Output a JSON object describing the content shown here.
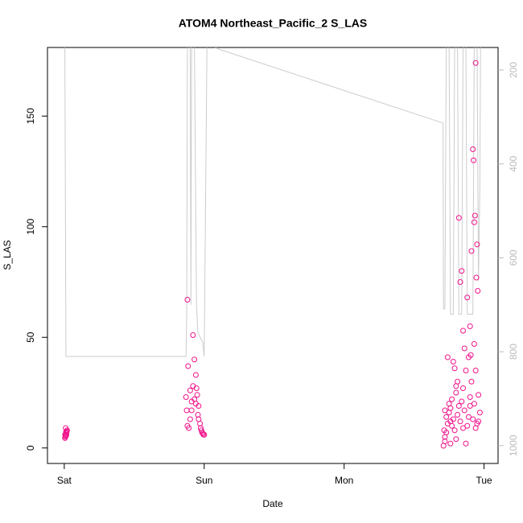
{
  "chart_data": {
    "type": "scatter",
    "title": "ATOM4 Northeast_Pacific_2 S_LAS",
    "x_label": "Date",
    "y_label": "S_LAS",
    "xlim": [
      -0.12,
      3.1
    ],
    "xticks": [
      {
        "value": 0,
        "label": "Sat"
      },
      {
        "value": 1,
        "label": "Sun"
      },
      {
        "value": 2,
        "label": "Mon"
      },
      {
        "value": 3,
        "label": "Tue"
      }
    ],
    "ylim": [
      -7,
      181
    ],
    "yticks": [
      0,
      50,
      100,
      150
    ],
    "y2lim": [
      1038,
      152
    ],
    "y2ticks": [
      200,
      400,
      600,
      800,
      1000
    ],
    "y2_color": "#bbbbbb",
    "grid": false,
    "series": [
      {
        "kind": "points",
        "color": "#f0148c",
        "x": [
          0.005,
          0.008,
          0.01,
          0.012,
          0.014,
          0.016,
          0.018,
          0.02,
          0.01,
          0.006,
          0.015,
          0.012,
          0.88,
          0.885,
          0.87,
          0.875,
          0.89,
          0.9,
          0.91,
          0.92,
          0.93,
          0.94,
          0.945,
          0.95,
          0.96,
          0.955,
          0.97,
          0.975,
          0.98,
          0.985,
          0.99,
          1.0,
          0.995,
          0.9,
          0.92,
          0.93,
          0.94,
          0.88,
          0.91,
          0.96,
          2.71,
          2.72,
          2.715,
          2.73,
          2.72,
          2.74,
          2.75,
          2.76,
          2.77,
          2.78,
          2.79,
          2.8,
          2.81,
          2.82,
          2.83,
          2.84,
          2.85,
          2.86,
          2.87,
          2.88,
          2.89,
          2.9,
          2.905,
          2.91,
          2.92,
          2.925,
          2.93,
          2.935,
          2.94,
          2.95,
          2.945,
          2.955,
          2.96,
          2.97,
          2.73,
          2.74,
          2.75,
          2.76,
          2.77,
          2.78,
          2.79,
          2.8,
          2.81,
          2.82,
          2.83,
          2.84,
          2.85,
          2.86,
          2.87,
          2.88,
          2.89,
          2.9,
          2.91,
          2.92,
          2.93,
          2.94,
          2.95,
          2.96,
          2.72,
          2.76,
          2.8,
          2.85,
          2.9,
          2.93,
          2.94
        ],
        "values": [
          4.5,
          5,
          5.5,
          6,
          6.5,
          7,
          7.5,
          8,
          9,
          6,
          5.8,
          7.2,
          67,
          37,
          23,
          17,
          9,
          13,
          21,
          51,
          40,
          33,
          27,
          24,
          19,
          15,
          11,
          9,
          8,
          7,
          6.5,
          6,
          6,
          26,
          28,
          22,
          20,
          10,
          17,
          13,
          1,
          3,
          8,
          14,
          17,
          41,
          20,
          12,
          10,
          39,
          36,
          25,
          30,
          104,
          75,
          80,
          53,
          45,
          35,
          68,
          41,
          55,
          42,
          89,
          135,
          130,
          102,
          105,
          174,
          92,
          77,
          71,
          24,
          16,
          7,
          11,
          16,
          18,
          22,
          13,
          8,
          4,
          15,
          19,
          12,
          21,
          27,
          17,
          2,
          10,
          14,
          19,
          30,
          13,
          20,
          9,
          11,
          12,
          5,
          2,
          28,
          9,
          23,
          47,
          35
        ]
      },
      {
        "kind": "line",
        "axis": "y2",
        "color": "#cccccc",
        "x": [
          0.004,
          0.012,
          0.87,
          0.875,
          0.88,
          0.9,
          0.905,
          0.91,
          0.93,
          0.945,
          0.955,
          0.99,
          1.0,
          1.02,
          1.098,
          2.707,
          2.71,
          2.72,
          2.73,
          2.75,
          2.76,
          2.78,
          2.79,
          2.81,
          2.82,
          2.84,
          2.85,
          2.87,
          2.88,
          2.92,
          2.93,
          2.95,
          2.96,
          2.97,
          2.975
        ],
        "values": [
          130,
          810,
          810,
          720,
          140,
          140,
          700,
          140,
          140,
          700,
          760,
          780,
          810,
          140,
          155,
          313,
          709,
          709,
          140,
          140,
          720,
          720,
          140,
          140,
          720,
          720,
          140,
          140,
          720,
          720,
          140,
          140,
          650,
          445,
          140
        ]
      }
    ]
  }
}
